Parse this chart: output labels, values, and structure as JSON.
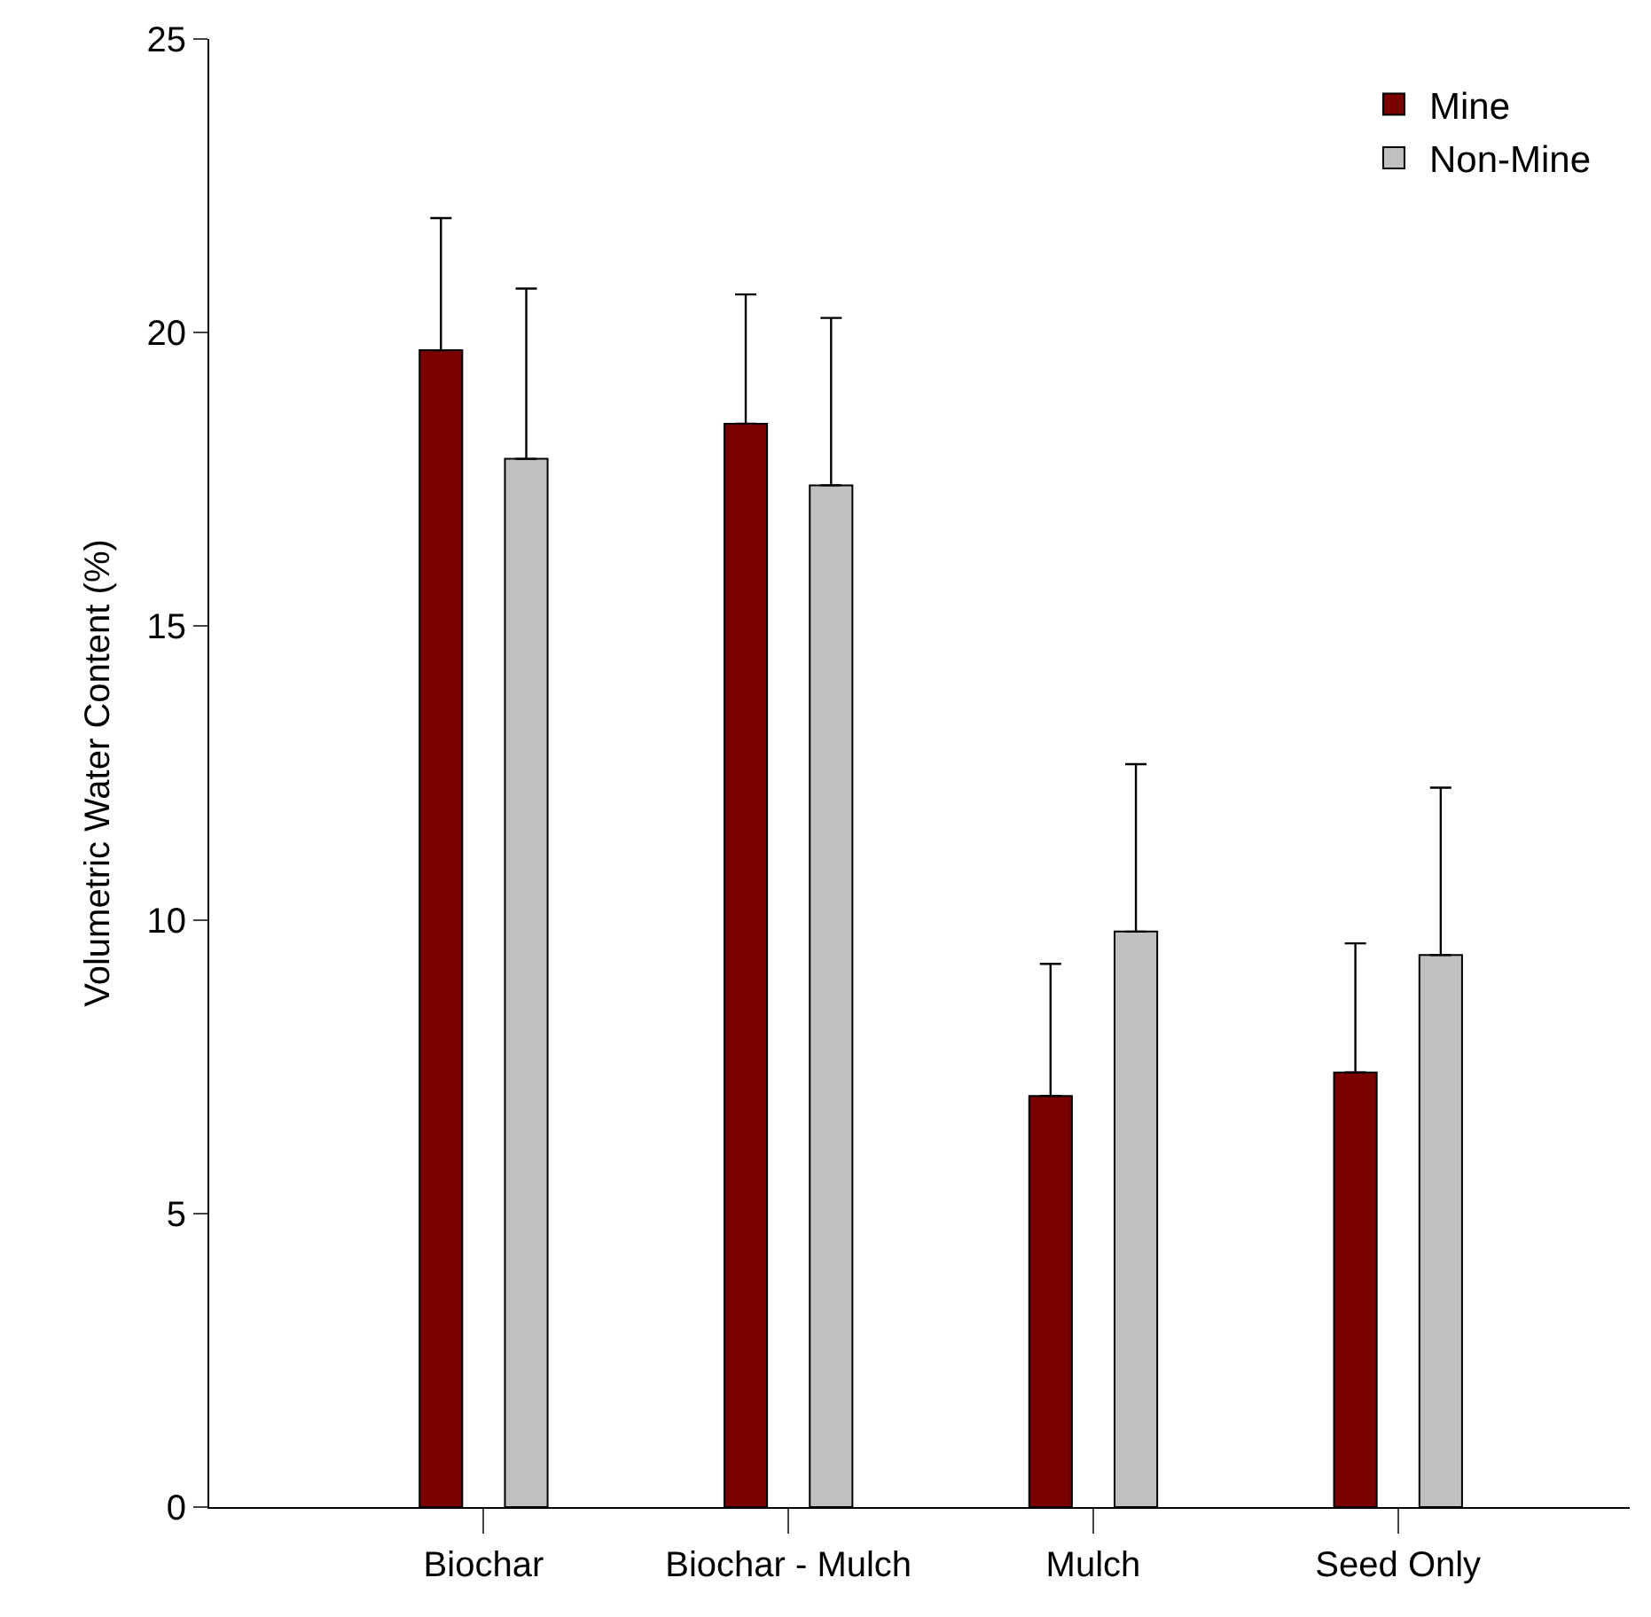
{
  "chart_data": {
    "type": "bar",
    "ylabel": "Volumetric Water Content (%)",
    "categories": [
      "Biochar",
      "Biochar - Mulch",
      "Mulch",
      "Seed Only"
    ],
    "series": [
      {
        "name": "Mine",
        "color": "#7b0000",
        "values": [
          19.7,
          18.45,
          7.0,
          7.4
        ],
        "errors": [
          [
            19.7,
            21.95
          ],
          [
            18.45,
            20.65
          ],
          [
            7.0,
            9.25
          ],
          [
            7.4,
            9.6
          ]
        ]
      },
      {
        "name": "Non-Mine",
        "color": "#c0c0c0",
        "values": [
          17.85,
          17.4,
          9.8,
          9.4
        ],
        "errors": [
          [
            17.85,
            20.75
          ],
          [
            17.4,
            20.25
          ],
          [
            9.8,
            12.65
          ],
          [
            9.4,
            12.25
          ]
        ]
      }
    ],
    "ylim": [
      0,
      25
    ],
    "yticks": [
      0,
      5,
      10,
      15,
      20,
      25
    ],
    "legend": "top right"
  }
}
